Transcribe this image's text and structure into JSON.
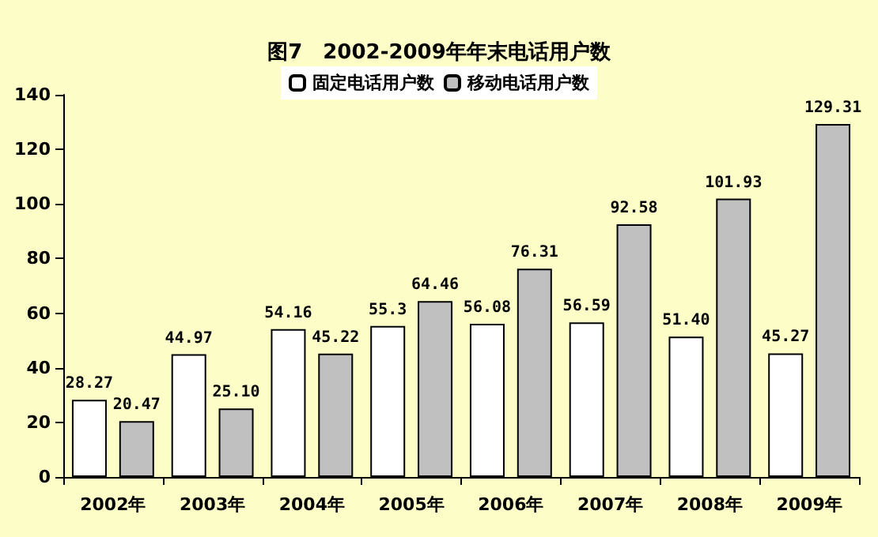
{
  "chart_data": {
    "type": "bar",
    "title": "图7　2002-2009年年末电话用户数",
    "categories": [
      "2002年",
      "2003年",
      "2004年",
      "2005年",
      "2006年",
      "2007年",
      "2008年",
      "2009年"
    ],
    "series": [
      {
        "name": "固定电话用户数",
        "color": "#ffffff",
        "values": [
          28.27,
          44.97,
          54.16,
          55.3,
          56.08,
          56.59,
          51.4,
          45.27
        ],
        "value_labels": [
          "28.27",
          "44.97",
          "54.16",
          "55.3",
          "56.08",
          "56.59",
          "51.40",
          "45.27"
        ]
      },
      {
        "name": "移动电话用户数",
        "color": "#c0c0c0",
        "values": [
          20.47,
          25.1,
          45.22,
          64.46,
          76.31,
          92.58,
          101.93,
          129.31
        ],
        "value_labels": [
          "20.47",
          "25.10",
          "45.22",
          "64.46",
          "76.31",
          "92.58",
          "101.93",
          "129.31"
        ]
      }
    ],
    "ylim": [
      0,
      140
    ],
    "yticks": [
      0,
      20,
      40,
      60,
      80,
      100,
      120,
      140
    ],
    "grid": false,
    "legend": "top"
  }
}
